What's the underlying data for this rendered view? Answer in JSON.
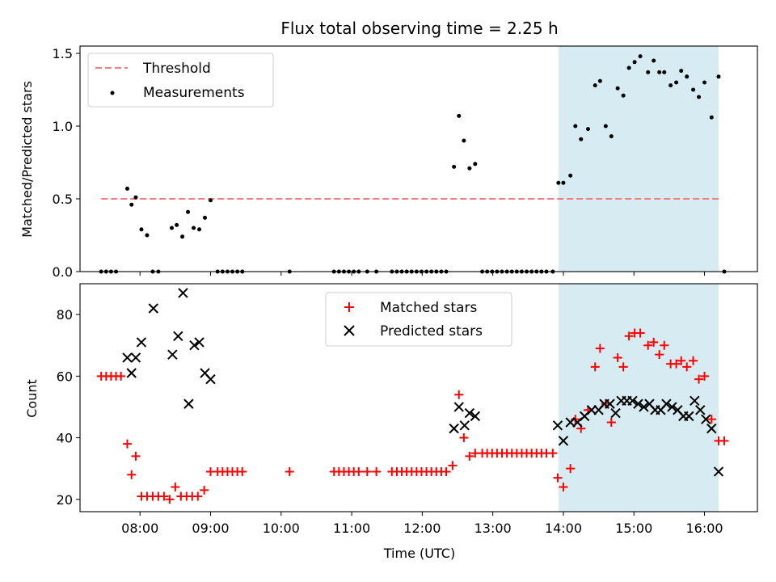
{
  "chart_data": [
    {
      "type": "scatter",
      "title": "Flux total observing time = 2.25 h",
      "xlabel": "",
      "ylabel": "Matched/Predicted stars",
      "xlim": [
        7.15,
        16.75
      ],
      "ylim": [
        0.0,
        1.55
      ],
      "yticks": [
        0.0,
        0.5,
        1.0,
        1.5
      ],
      "ytick_labels": [
        "0.0",
        "0.5",
        "1.0",
        "1.5"
      ],
      "xticks": [
        8,
        9,
        10,
        11,
        12,
        13,
        14,
        15,
        16
      ],
      "shaded_region": {
        "x_start": 13.93,
        "x_end": 16.2,
        "color": "#add8e6"
      },
      "threshold": {
        "label": "Threshold",
        "value": 0.5,
        "x_start": 7.45,
        "x_end": 16.2,
        "color": "#f08080"
      },
      "legend": {
        "position": "top-left",
        "entries": [
          "Threshold",
          "Measurements"
        ]
      },
      "series": [
        {
          "name": "Measurements",
          "marker": "dot",
          "color": "#000000",
          "x": [
            7.45,
            7.52,
            7.59,
            7.66,
            7.82,
            7.88,
            7.94,
            8.02,
            8.1,
            8.18,
            8.26,
            8.45,
            8.52,
            8.6,
            8.68,
            8.76,
            8.84,
            8.92,
            9.0,
            9.1,
            9.17,
            9.24,
            9.31,
            9.38,
            9.45,
            10.12,
            10.75,
            10.82,
            10.89,
            10.96,
            11.03,
            11.1,
            11.22,
            11.35,
            11.57,
            11.64,
            11.71,
            11.78,
            11.85,
            11.92,
            11.99,
            12.06,
            12.13,
            12.2,
            12.27,
            12.34,
            12.45,
            12.52,
            12.59,
            12.67,
            12.75,
            12.85,
            12.92,
            12.99,
            13.06,
            13.13,
            13.2,
            13.27,
            13.34,
            13.41,
            13.48,
            13.55,
            13.62,
            13.69,
            13.76,
            13.85,
            13.93,
            14.0,
            14.1,
            14.17,
            14.25,
            14.35,
            14.45,
            14.52,
            14.6,
            14.68,
            14.77,
            14.85,
            14.93,
            15.01,
            15.09,
            15.2,
            15.28,
            15.36,
            15.43,
            15.52,
            15.6,
            15.67,
            15.75,
            15.84,
            15.92,
            16.0,
            16.1,
            16.2,
            16.28
          ],
          "y": [
            0,
            0,
            0,
            0,
            0.57,
            0.46,
            0.51,
            0.29,
            0.25,
            0,
            0,
            0.3,
            0.32,
            0.24,
            0.41,
            0.3,
            0.29,
            0.37,
            0.49,
            0,
            0,
            0,
            0,
            0,
            0,
            0,
            0,
            0,
            0,
            0,
            0,
            0,
            0,
            0,
            0,
            0,
            0,
            0,
            0,
            0,
            0,
            0,
            0,
            0,
            0,
            0,
            0.72,
            1.07,
            0.9,
            0.71,
            0.74,
            0,
            0,
            0,
            0,
            0,
            0,
            0,
            0,
            0,
            0,
            0,
            0,
            0,
            0,
            0,
            0.61,
            0.61,
            0.66,
            1.0,
            0.91,
            0.98,
            1.28,
            1.31,
            1.0,
            0.93,
            1.26,
            1.21,
            1.4,
            1.44,
            1.48,
            1.37,
            1.45,
            1.37,
            1.37,
            1.28,
            1.3,
            1.38,
            1.34,
            1.25,
            1.2,
            1.3,
            1.06,
            1.34,
            0
          ]
        }
      ]
    },
    {
      "type": "scatter",
      "title": "",
      "xlabel": "Time (UTC)",
      "ylabel": "Count",
      "xlim": [
        7.15,
        16.75
      ],
      "ylim": [
        16,
        90
      ],
      "yticks": [
        20,
        40,
        60,
        80
      ],
      "ytick_labels": [
        "20",
        "40",
        "60",
        "80"
      ],
      "xticks": [
        8,
        9,
        10,
        11,
        12,
        13,
        14,
        15,
        16
      ],
      "xtick_labels": [
        "08:00",
        "09:00",
        "10:00",
        "11:00",
        "12:00",
        "13:00",
        "14:00",
        "15:00",
        "16:00"
      ],
      "shaded_region": {
        "x_start": 13.93,
        "x_end": 16.2,
        "color": "#add8e6"
      },
      "legend": {
        "position": "top-center",
        "entries": [
          "Matched stars",
          "Predicted stars"
        ]
      },
      "series": [
        {
          "name": "Matched stars",
          "marker": "plus",
          "color": "#ff0000",
          "x": [
            7.45,
            7.52,
            7.59,
            7.66,
            7.73,
            7.82,
            7.88,
            7.94,
            8.02,
            8.1,
            8.18,
            8.26,
            8.34,
            8.42,
            8.5,
            8.58,
            8.66,
            8.74,
            8.82,
            8.91,
            9.0,
            9.1,
            9.17,
            9.24,
            9.31,
            9.38,
            9.45,
            10.12,
            10.75,
            10.82,
            10.89,
            10.96,
            11.03,
            11.1,
            11.22,
            11.35,
            11.57,
            11.64,
            11.71,
            11.78,
            11.85,
            11.92,
            11.99,
            12.06,
            12.13,
            12.2,
            12.27,
            12.34,
            12.43,
            12.52,
            12.59,
            12.67,
            12.75,
            12.85,
            12.92,
            12.99,
            13.06,
            13.13,
            13.2,
            13.27,
            13.34,
            13.41,
            13.48,
            13.55,
            13.62,
            13.69,
            13.76,
            13.85,
            13.92,
            14.0,
            14.1,
            14.17,
            14.25,
            14.35,
            14.45,
            14.52,
            14.6,
            14.68,
            14.77,
            14.85,
            14.93,
            15.01,
            15.09,
            15.2,
            15.28,
            15.36,
            15.43,
            15.52,
            15.6,
            15.67,
            15.75,
            15.84,
            15.92,
            16.0,
            16.1,
            16.2,
            16.28
          ],
          "y": [
            60,
            60,
            60,
            60,
            60,
            38,
            28,
            34,
            21,
            21,
            21,
            21,
            21,
            20,
            24,
            21,
            21,
            21,
            21,
            23,
            29,
            29,
            29,
            29,
            29,
            29,
            29,
            29,
            29,
            29,
            29,
            29,
            29,
            29,
            29,
            29,
            29,
            29,
            29,
            29,
            29,
            29,
            29,
            29,
            29,
            29,
            29,
            29,
            31,
            54,
            40,
            34,
            35,
            35,
            35,
            35,
            35,
            35,
            35,
            35,
            35,
            35,
            35,
            35,
            35,
            35,
            35,
            35,
            27,
            24,
            30,
            46,
            43,
            49,
            63,
            69,
            51,
            45,
            66,
            63,
            73,
            74,
            74,
            70,
            71,
            67,
            70,
            64,
            64,
            65,
            63,
            65,
            59,
            60,
            46,
            39,
            39
          ]
        },
        {
          "name": "Predicted stars",
          "marker": "x",
          "color": "#000000",
          "x": [
            7.82,
            7.88,
            7.94,
            8.02,
            8.19,
            8.46,
            8.54,
            8.61,
            8.69,
            8.77,
            8.84,
            8.92,
            9.0,
            12.45,
            12.52,
            12.6,
            12.67,
            12.75,
            13.92,
            14.0,
            14.1,
            14.2,
            14.3,
            14.4,
            14.5,
            14.58,
            14.66,
            14.74,
            14.82,
            14.9,
            14.98,
            15.06,
            15.14,
            15.22,
            15.3,
            15.38,
            15.46,
            15.54,
            15.62,
            15.7,
            15.78,
            15.86,
            15.94,
            16.02,
            16.1,
            16.2
          ],
          "y": [
            66,
            61,
            66,
            71,
            82,
            67,
            73,
            87,
            51,
            70,
            71,
            61,
            59,
            43,
            50,
            44,
            48,
            47,
            44,
            39,
            45,
            45,
            47,
            49,
            49,
            51,
            51,
            48,
            52,
            52,
            52,
            51,
            50,
            51,
            49,
            49,
            51,
            50,
            49,
            47,
            47,
            52,
            49,
            46,
            43,
            29
          ]
        }
      ]
    }
  ]
}
